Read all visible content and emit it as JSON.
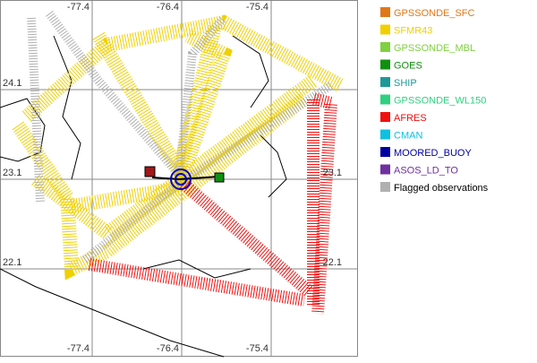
{
  "map": {
    "lon_labels_top": [
      -77.4,
      -76.4,
      -75.4
    ],
    "lon_labels_bottom": [
      -77.4,
      -76.4,
      -75.4
    ],
    "lat_labels_left": [
      24.1,
      23.1,
      22.1
    ],
    "lat_labels_right": [
      23.1,
      22.1
    ]
  },
  "legend": [
    {
      "label": "GPSSONDE_SFC",
      "color": "#e07818"
    },
    {
      "label": "SFMR43",
      "color": "#f0d000"
    },
    {
      "label": "GPSSONDE_MBL",
      "color": "#80d040"
    },
    {
      "label": "GOES",
      "color": "#109010"
    },
    {
      "label": "SHIP",
      "color": "#209898"
    },
    {
      "label": "GPSSONDE_WL150",
      "color": "#30d080"
    },
    {
      "label": "AFRES",
      "color": "#f01010"
    },
    {
      "label": "CMAN",
      "color": "#10c0e0"
    },
    {
      "label": "MOORED_BUOY",
      "color": "#0000a0"
    },
    {
      "label": "ASOS_LD_TO",
      "color": "#7030a0"
    },
    {
      "label": "Flagged observations",
      "color": "#b0b0b0"
    }
  ]
}
